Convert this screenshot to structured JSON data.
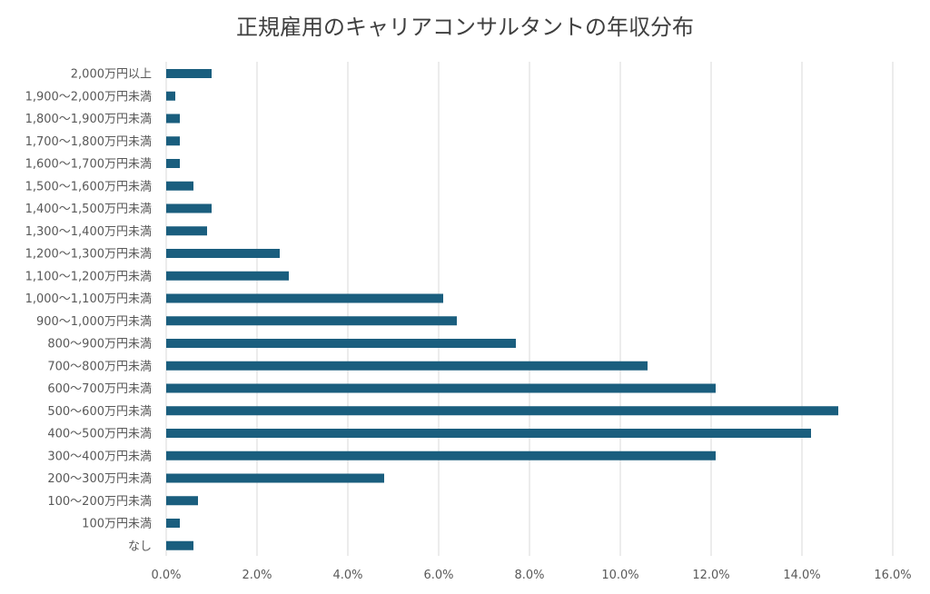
{
  "chart_data": {
    "type": "bar",
    "orientation": "horizontal",
    "title": "正規雇用のキャリアコンサルタントの年収分布",
    "xlabel": "",
    "ylabel": "",
    "xlim": [
      0,
      16
    ],
    "x_ticks": [
      0,
      2,
      4,
      6,
      8,
      10,
      12,
      14,
      16
    ],
    "x_tick_labels": [
      "0.0%",
      "2.0%",
      "4.0%",
      "6.0%",
      "8.0%",
      "10.0%",
      "12.0%",
      "14.0%",
      "16.0%"
    ],
    "grid": "vertical",
    "bar_color": "#1a5e7e",
    "categories": [
      "2,000万円以上",
      "1,900〜2,000万円未満",
      "1,800〜1,900万円未満",
      "1,700〜1,800万円未満",
      "1,600〜1,700万円未満",
      "1,500〜1,600万円未満",
      "1,400〜1,500万円未満",
      "1,300〜1,400万円未満",
      "1,200〜1,300万円未満",
      "1,100〜1,200万円未満",
      "1,000〜1,100万円未満",
      "900〜1,000万円未満",
      "800〜900万円未満",
      "700〜800万円未満",
      "600〜700万円未満",
      "500〜600万円未満",
      "400〜500万円未満",
      "300〜400万円未満",
      "200〜300万円未満",
      "100〜200万円未満",
      "100万円未満",
      "なし"
    ],
    "values": [
      1.0,
      0.2,
      0.3,
      0.3,
      0.3,
      0.6,
      1.0,
      0.9,
      2.5,
      2.7,
      6.1,
      6.4,
      7.7,
      10.6,
      12.1,
      14.8,
      14.2,
      12.1,
      4.8,
      0.7,
      0.3,
      0.6
    ]
  }
}
